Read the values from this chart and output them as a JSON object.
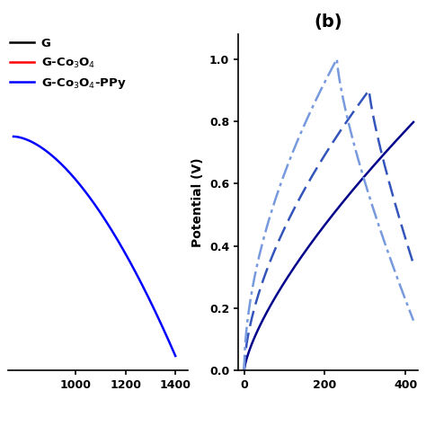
{
  "title_b": "(b)",
  "legend_labels": [
    "G",
    "G-Co$_3$O$_4$",
    "G-Co$_3$O$_4$-PPy"
  ],
  "legend_colors": [
    "black",
    "red",
    "blue"
  ],
  "panel_b_ylabel": "Potential (V)",
  "panel_b_yticks": [
    0.0,
    0.2,
    0.4,
    0.6,
    0.8,
    1.0
  ],
  "panel_b_xticks": [
    0,
    200,
    400
  ],
  "panel_b_xlim": [
    -15,
    430
  ],
  "panel_b_ylim": [
    0.0,
    1.08
  ],
  "bg_color": "#ffffff",
  "curve_color_dark": "#00008B",
  "curve_color_med": "#3355BB",
  "curve_color_light": "#7799DD",
  "panel_a_xlim": [
    730,
    1450
  ],
  "panel_a_ylim": [
    -0.05,
    1.1
  ],
  "panel_a_xticks": [
    1000,
    1200,
    1400
  ]
}
